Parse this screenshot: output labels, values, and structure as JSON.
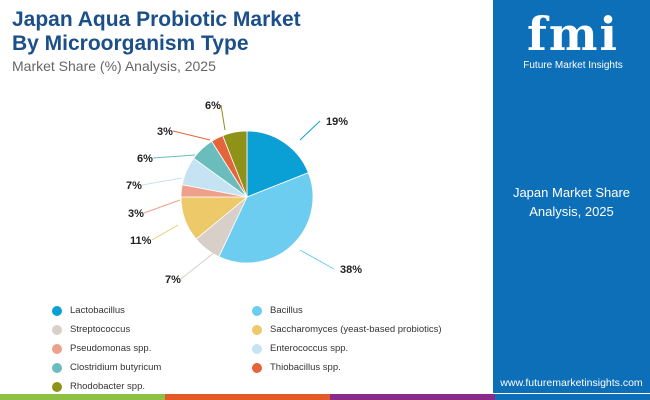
{
  "header": {
    "title_line1": "Japan Aqua Probiotic Market",
    "title_line2": "By Microorganism Type",
    "subtitle": "Market Share (%) Analysis, 2025"
  },
  "side": {
    "logo_text": "fmi",
    "logo_caption": "Future Market Insights",
    "panel_line1": "Japan Market Share",
    "panel_line2": "Analysis, 2025",
    "url": "www.futuremarketinsights.com"
  },
  "chart_data": {
    "type": "pie",
    "title": "Japan Aqua Probiotic Market By Microorganism Type",
    "start": "12 o'clock, clockwise",
    "legend_position": "bottom",
    "slices": [
      {
        "label": "Lactobacillus",
        "value": 19,
        "text": "19%",
        "color": "#0aa0d6"
      },
      {
        "label": "Bacillus",
        "value": 38,
        "text": "38%",
        "color": "#6ccdf0"
      },
      {
        "label": "Streptococcus",
        "value": 7,
        "text": "7%",
        "color": "#d9cfc9"
      },
      {
        "label": "Saccharomyces (yeast-based probiotics)",
        "value": 11,
        "text": "11%",
        "color": "#edc96a"
      },
      {
        "label": "Pseudomonas spp.",
        "value": 3,
        "text": "3%",
        "color": "#eea08c"
      },
      {
        "label": "Enterococcus spp.",
        "value": 7,
        "text": "7%",
        "color": "#c5e3f3"
      },
      {
        "label": "Clostridium butyricum",
        "value": 6,
        "text": "6%",
        "color": "#6bbcbc"
      },
      {
        "label": "Thiobacillus spp.",
        "value": 3,
        "text": "3%",
        "color": "#e5653a"
      },
      {
        "label": "Rhodobacter spp.",
        "value": 6,
        "text": "6%",
        "color": "#8e9219"
      }
    ]
  },
  "stripe_colors": [
    "#8dc043",
    "#e35a26",
    "#8a2a8b",
    "#0d6fb8"
  ]
}
